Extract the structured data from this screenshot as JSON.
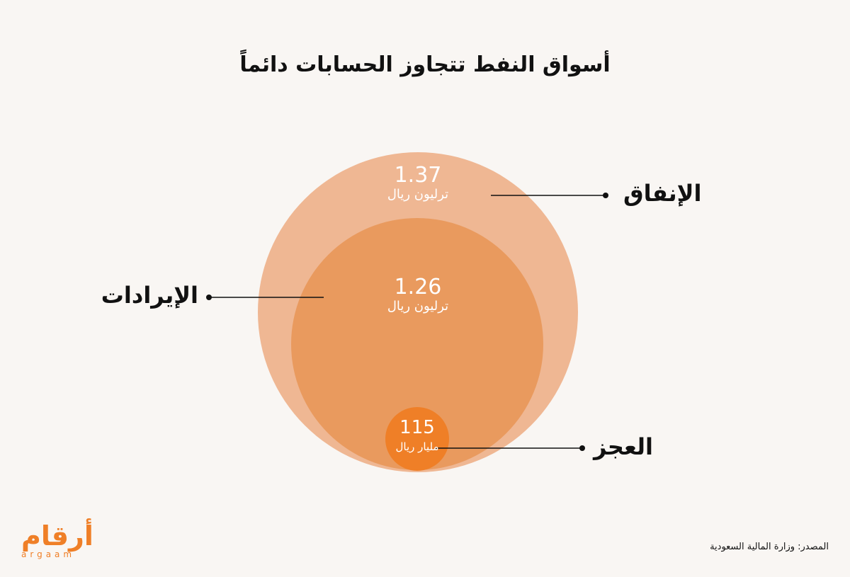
{
  "title": "أسواق النفط تتجاوز الحسابات دائماً",
  "chart_data": {
    "type": "bubble",
    "title": "أسواق النفط تتجاوز الحسابات دائماً",
    "bubbles": [
      {
        "label": "الإنفاق",
        "value": 1.37,
        "value_text": "1.37",
        "unit": "ترليون ريال",
        "value_sar_billion": 1370,
        "color": "#efb793"
      },
      {
        "label": "الإيرادات",
        "value": 1.26,
        "value_text": "1.26",
        "unit": "ترليون ريال",
        "value_sar_billion": 1260,
        "color": "#e99a5e"
      },
      {
        "label": "العجز",
        "value": 115,
        "value_text": "115",
        "unit": "مليار ريال",
        "value_sar_billion": 115,
        "color": "#ef7f27"
      }
    ]
  },
  "source": "المصدر: وزارة المالية السعودية",
  "logo": {
    "arabic": "أرقام",
    "latin": "argaam",
    "color": "#ef7f27"
  },
  "colors": {
    "background": "#f9f6f3",
    "line": "#111111"
  }
}
